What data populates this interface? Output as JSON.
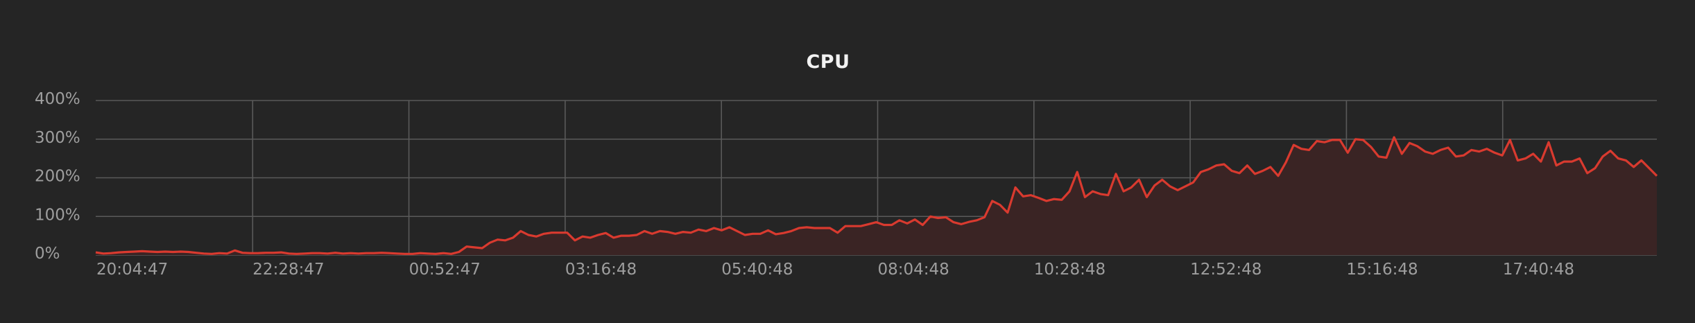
{
  "chart_data": {
    "type": "area",
    "title": "CPU",
    "xlabel": "",
    "ylabel": "",
    "ylim": [
      0,
      400
    ],
    "y_ticks": [
      "0%",
      "100%",
      "200%",
      "300%",
      "400%"
    ],
    "x_tick_labels": [
      "20:04:47",
      "22:28:47",
      "00:52:47",
      "03:16:48",
      "05:40:48",
      "08:04:48",
      "10:28:48",
      "12:52:48",
      "15:16:48",
      "17:40:48"
    ],
    "grid": true,
    "line_color": "#d93a2f",
    "fill_color": "#3a2424",
    "series": [
      {
        "values": [
          7,
          4,
          5,
          7,
          8,
          9,
          10,
          9,
          8,
          9,
          8,
          9,
          8,
          6,
          4,
          3,
          5,
          4,
          12,
          6,
          5,
          5,
          6,
          6,
          7,
          4,
          3,
          4,
          5,
          5,
          4,
          6,
          4,
          5,
          4,
          5,
          5,
          6,
          5,
          4,
          3,
          3,
          5,
          4,
          3,
          5,
          3,
          8,
          22,
          20,
          18,
          32,
          40,
          38,
          45,
          62,
          52,
          48,
          55,
          58,
          58,
          58,
          38,
          48,
          45,
          52,
          57,
          45,
          50,
          50,
          52,
          62,
          55,
          62,
          60,
          55,
          60,
          58,
          66,
          62,
          70,
          64,
          72,
          62,
          52,
          55,
          55,
          64,
          54,
          57,
          62,
          70,
          72,
          70,
          70,
          70,
          58,
          75,
          75,
          75,
          80,
          85,
          78,
          78,
          90,
          82,
          92,
          78,
          100,
          96,
          98,
          85,
          80,
          86,
          90,
          98,
          140,
          130,
          110,
          175,
          152,
          155,
          148,
          140,
          145,
          143,
          165,
          215,
          150,
          165,
          158,
          155,
          210,
          165,
          175,
          195,
          150,
          180,
          195,
          178,
          168,
          178,
          188,
          215,
          222,
          232,
          235,
          218,
          212,
          232,
          210,
          218,
          228,
          205,
          240,
          285,
          275,
          272,
          295,
          292,
          298,
          298,
          265,
          300,
          298,
          280,
          255,
          252,
          305,
          262,
          290,
          282,
          268,
          262,
          272,
          278,
          255,
          258,
          272,
          268,
          275,
          265,
          258,
          298,
          245,
          250,
          262,
          242,
          292,
          232,
          242,
          242,
          250,
          212,
          225,
          255,
          270,
          250,
          245,
          228,
          245,
          225,
          205
        ]
      }
    ]
  }
}
